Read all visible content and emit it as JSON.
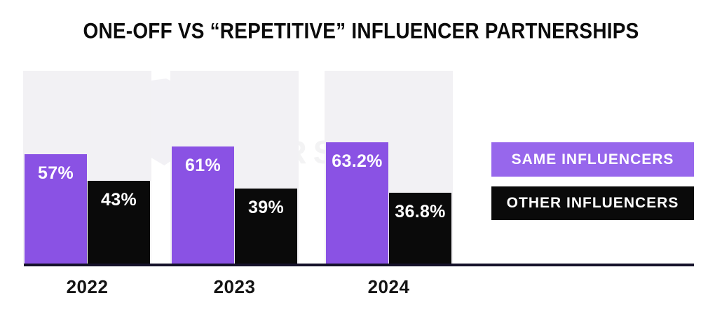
{
  "title": "ONE-OFF VS “REPETITIVE” INFLUENCER PARTNERSHIPS",
  "watermark": {
    "visible_text": "STERS"
  },
  "chart_data": {
    "type": "bar",
    "title": "ONE-OFF VS “REPETITIVE” INFLUENCER PARTNERSHIPS",
    "categories": [
      "2022",
      "2023",
      "2024"
    ],
    "series": [
      {
        "name": "SAME INFLUENCERS",
        "color": "#8a52e4",
        "values": [
          57,
          61,
          63.2
        ],
        "labels": [
          "57%",
          "61%",
          "63.2%"
        ]
      },
      {
        "name": "OTHER INFLUENCERS",
        "color": "#0a0a0a",
        "values": [
          43,
          39,
          36.8
        ],
        "labels": [
          "43%",
          "39%",
          "36.8%"
        ]
      }
    ],
    "ylim": [
      0,
      100
    ],
    "value_label_format": "percent",
    "legend_position": "right",
    "grid": false,
    "xlabel": "",
    "ylabel": ""
  },
  "colors": {
    "bar_purple": "#8a52e4",
    "legend_purple": "#9767ec",
    "bar_black": "#0a0a0a",
    "column_bg": "#f2f1f4",
    "axis_color": "#15122a",
    "title_color": "#0b0b0b",
    "label_color": "#141414"
  }
}
